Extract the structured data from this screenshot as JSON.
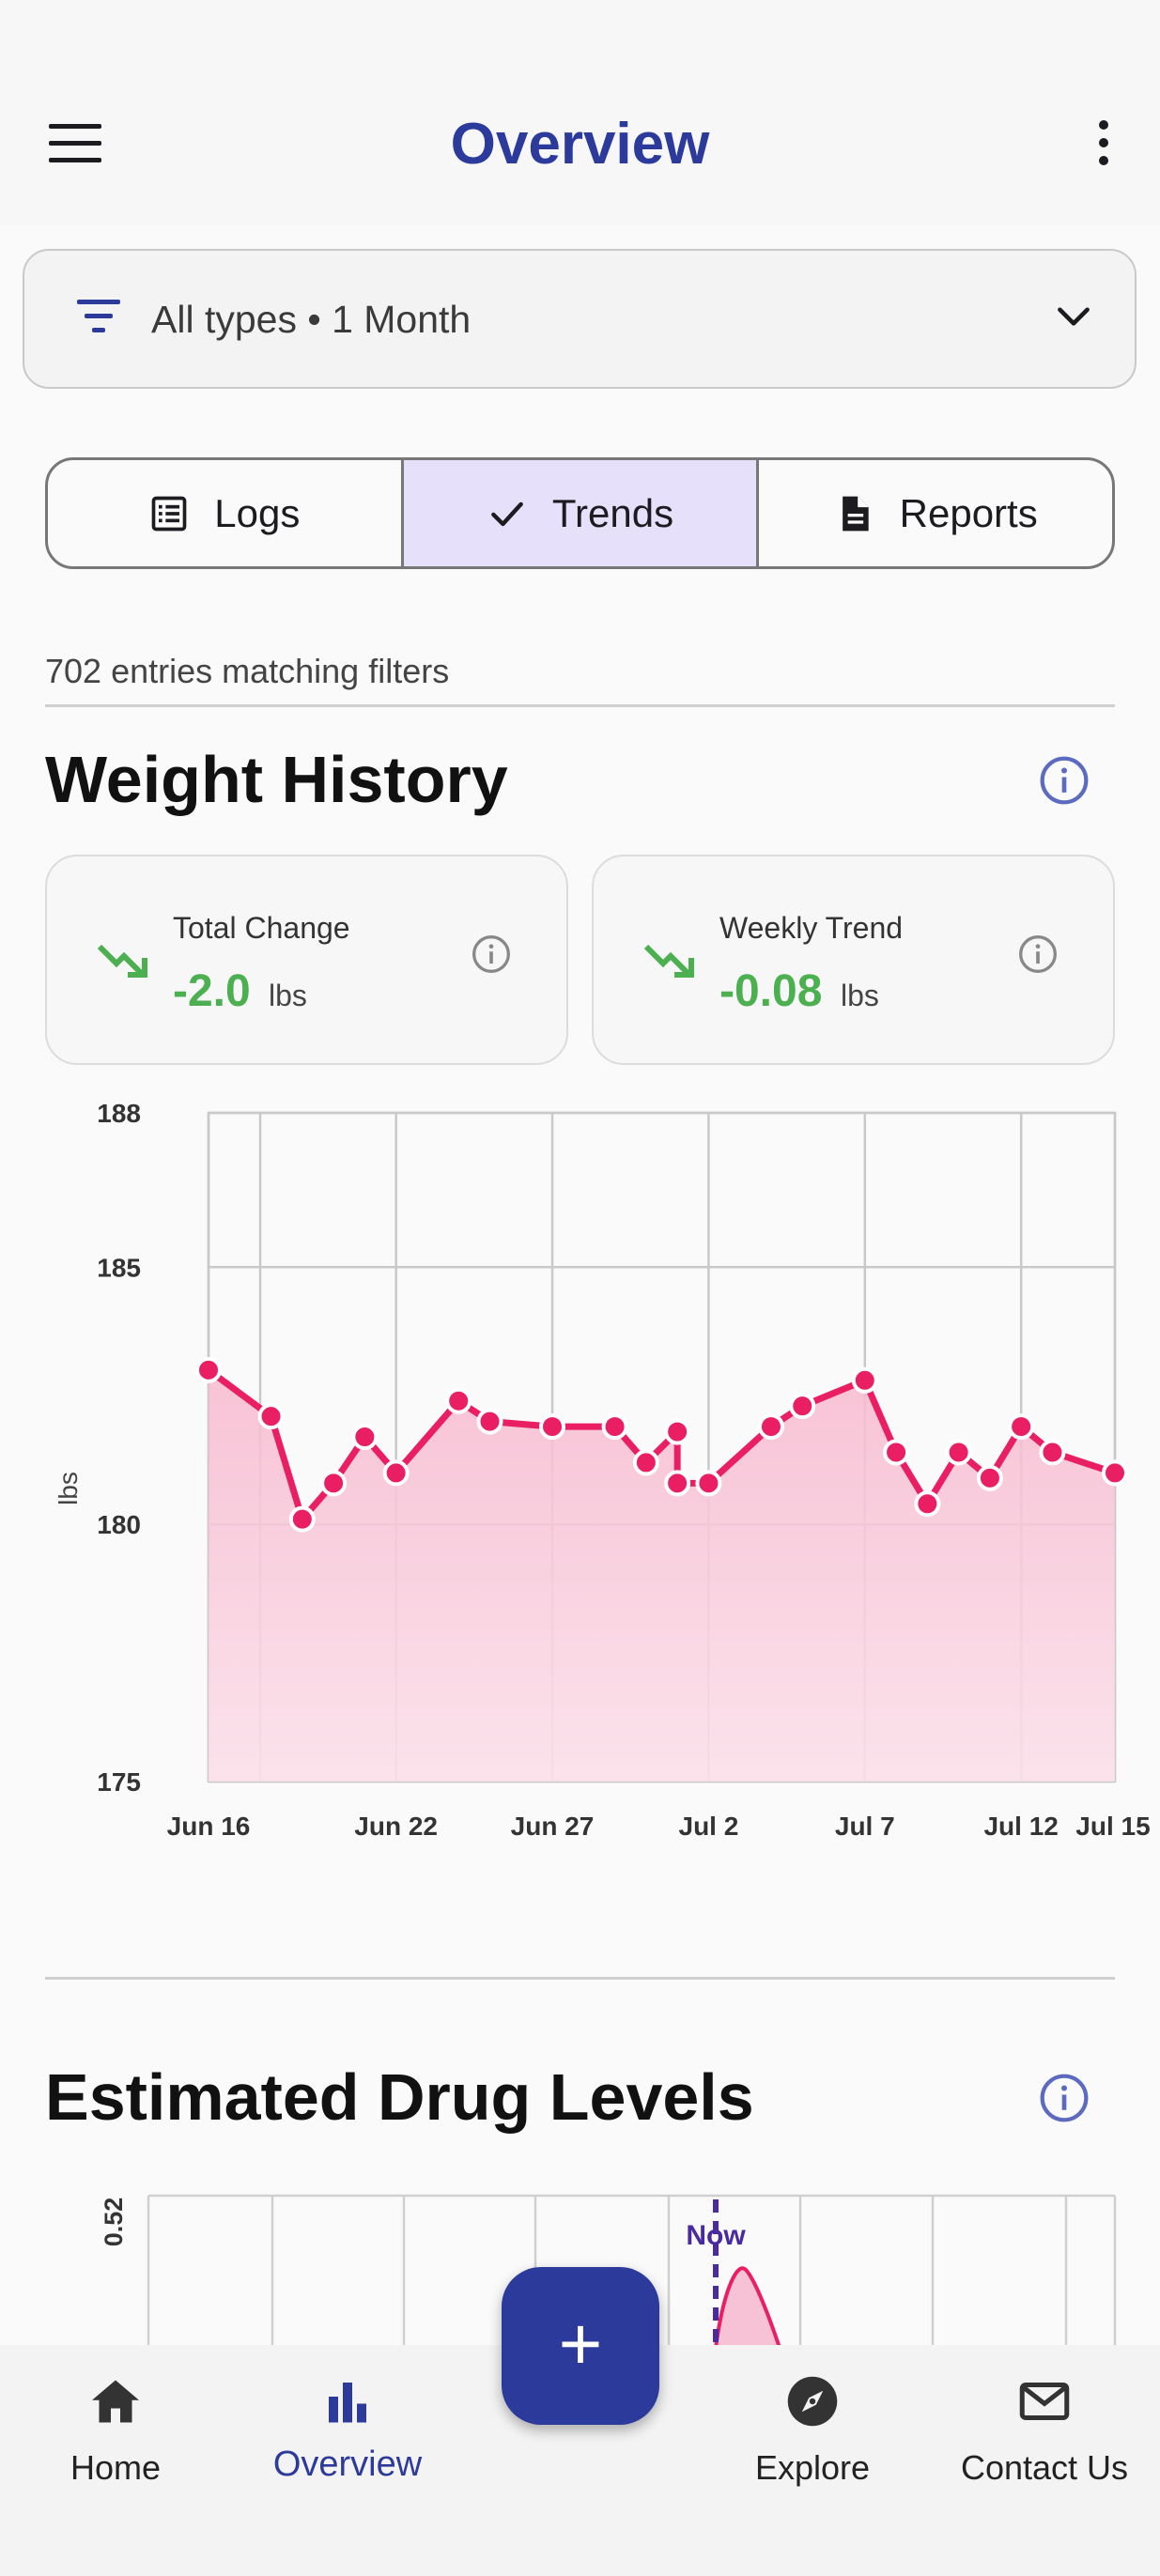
{
  "app_bar": {
    "title": "Overview"
  },
  "filter": {
    "text": "All types • 1 Month"
  },
  "segments": [
    {
      "label": "Logs",
      "icon": "list-icon"
    },
    {
      "label": "Trends",
      "icon": "check-icon",
      "selected": true
    },
    {
      "label": "Reports",
      "icon": "document-icon"
    }
  ],
  "entries_text": "702 entries matching filters",
  "weight": {
    "title": "Weight History",
    "total_change": {
      "label": "Total Change",
      "value": "-2.0",
      "unit": "lbs"
    },
    "weekly_trend": {
      "label": "Weekly Trend",
      "value": "-0.08",
      "unit": "lbs"
    }
  },
  "drug": {
    "title": "Estimated Drug Levels",
    "now_label": "Now"
  },
  "nav": [
    {
      "label": "Home",
      "icon": "home-icon"
    },
    {
      "label": "Overview",
      "icon": "bar-chart-icon",
      "active": true
    },
    {
      "label": "Explore",
      "icon": "compass-icon"
    },
    {
      "label": "Contact Us",
      "icon": "mail-icon"
    }
  ],
  "colors": {
    "primary": "#2b3a9b",
    "accent": "#e91e63",
    "positive": "#4caf50",
    "selected_segment": "#e7e0fb"
  },
  "chart_data": [
    {
      "type": "line",
      "ylabel": "lbs",
      "ylim": [
        175,
        188
      ],
      "yticks": [
        188,
        185,
        180,
        175
      ],
      "xticks": [
        "Jun 16",
        "Jun 22",
        "Jun 27",
        "Jul 2",
        "Jul 7",
        "Jul 12",
        "Jul 15"
      ],
      "grid": true,
      "series": [
        {
          "x": [
            "Jun 16",
            "Jun 18",
            "Jun 19",
            "Jun 20",
            "Jun 21",
            "Jun 22",
            "Jun 24",
            "Jun 25",
            "Jun 27",
            "Jun 29",
            "Jun 30",
            "Jul 1",
            "Jul 1",
            "Jul 2",
            "Jul 4",
            "Jul 5",
            "Jul 7",
            "Jul 8",
            "Jul 9",
            "Jul 10",
            "Jul 11",
            "Jul 12",
            "Jul 13",
            "Jul 15"
          ],
          "values": [
            183.0,
            182.1,
            180.1,
            180.8,
            181.7,
            181.0,
            182.4,
            182.0,
            181.9,
            181.9,
            181.2,
            181.8,
            180.8,
            180.8,
            181.9,
            182.3,
            182.8,
            181.4,
            180.4,
            181.4,
            180.9,
            181.9,
            181.4,
            181.0
          ]
        }
      ]
    },
    {
      "type": "area",
      "yticks": [
        0.52
      ],
      "annotation": "Now",
      "grid": true
    }
  ]
}
